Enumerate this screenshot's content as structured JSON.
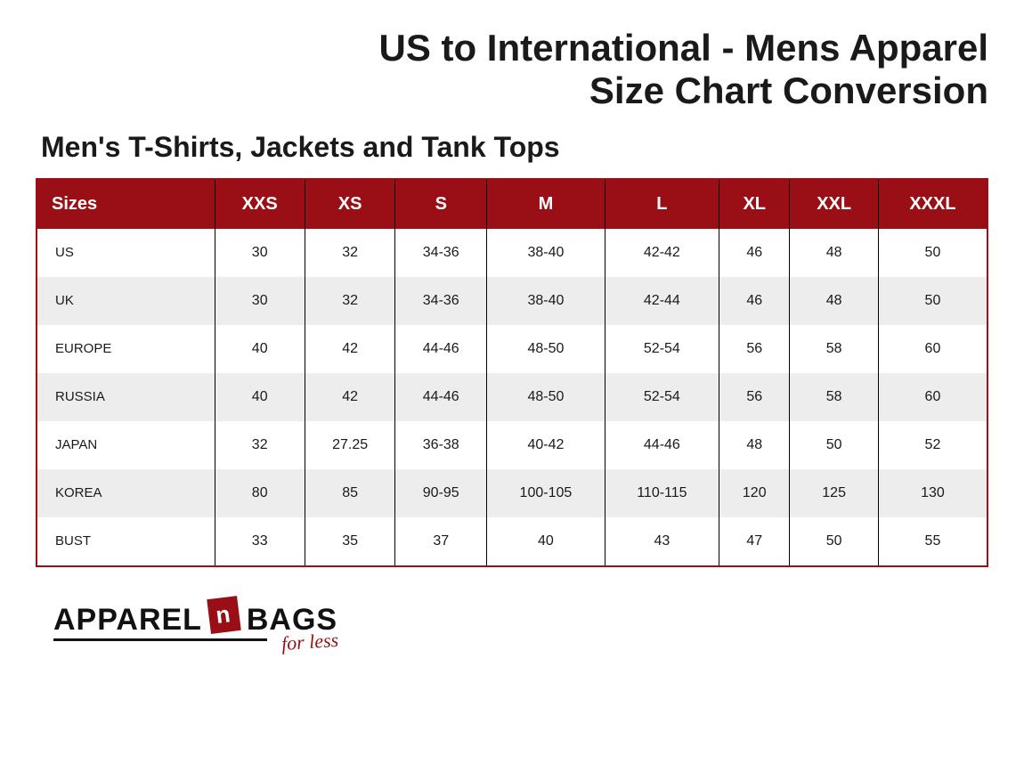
{
  "header": {
    "title_line1": "US to International - Mens Apparel",
    "title_line2": "Size Chart Conversion"
  },
  "subtitle": "Men's T-Shirts, Jackets and Tank Tops",
  "table": {
    "header_label": "Sizes",
    "columns": [
      "XXS",
      "XS",
      "S",
      "M",
      "L",
      "XL",
      "XXL",
      "XXXL"
    ],
    "rows": [
      {
        "label": "US",
        "cells": [
          "30",
          "32",
          "34-36",
          "38-40",
          "42-42",
          "46",
          "48",
          "50"
        ]
      },
      {
        "label": "UK",
        "cells": [
          "30",
          "32",
          "34-36",
          "38-40",
          "42-44",
          "46",
          "48",
          "50"
        ]
      },
      {
        "label": "EUROPE",
        "cells": [
          "40",
          "42",
          "44-46",
          "48-50",
          "52-54",
          "56",
          "58",
          "60"
        ]
      },
      {
        "label": "RUSSIA",
        "cells": [
          "40",
          "42",
          "44-46",
          "48-50",
          "52-54",
          "56",
          "58",
          "60"
        ]
      },
      {
        "label": "JAPAN",
        "cells": [
          "32",
          "27.25",
          "36-38",
          "40-42",
          "44-46",
          "48",
          "50",
          "52"
        ]
      },
      {
        "label": "KOREA",
        "cells": [
          "80",
          "85",
          "90-95",
          "100-105",
          "110-115",
          "120",
          "125",
          "130"
        ]
      },
      {
        "label": "BUST",
        "cells": [
          "33",
          "35",
          "37",
          "40",
          "43",
          "47",
          "50",
          "55"
        ]
      }
    ],
    "header_bg": "#9a0f15",
    "header_text_color": "#ffffff",
    "row_alt_bg": "#ededed",
    "row_bg": "#ffffff",
    "border_color": "#9a0f15",
    "cell_border_color": "#000000"
  },
  "logo": {
    "part1": "Apparel",
    "badge": "n",
    "part2": "Bags",
    "tagline": "for less",
    "badge_bg": "#9a0f15",
    "tagline_color": "#9a0f15"
  }
}
